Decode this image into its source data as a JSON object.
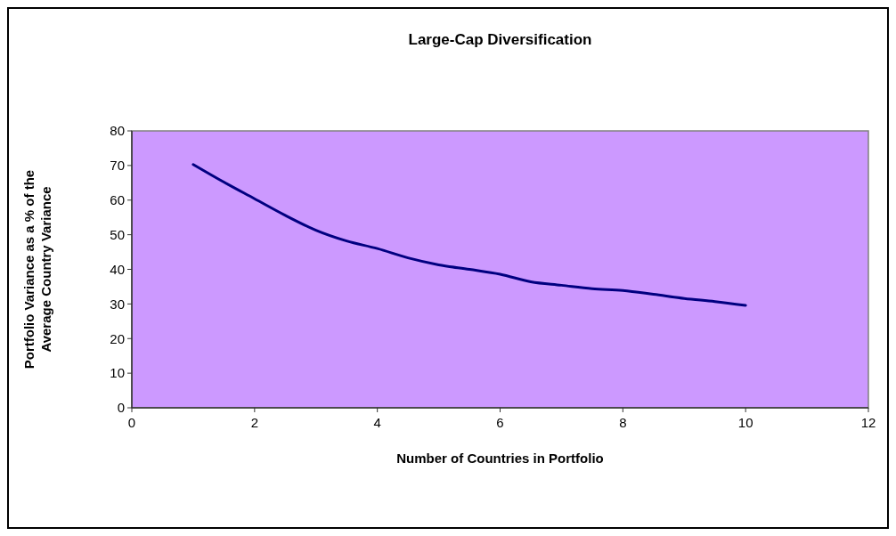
{
  "chart_data": {
    "type": "line",
    "title": "Large-Cap Diversification",
    "xlabel": "Number of Countries in Portfolio",
    "ylabel": "Portfolio Variance as a % of the Average Country Variance",
    "x": [
      1,
      1.5,
      2,
      2.5,
      3,
      3.5,
      4,
      4.5,
      5,
      5.5,
      6,
      6.5,
      7,
      7.5,
      8,
      8.5,
      9,
      9.5,
      10
    ],
    "series": [
      {
        "color": "#000080",
        "values": [
          70.3,
          65.2,
          60.4,
          55.6,
          51.3,
          48.2,
          46.0,
          43.3,
          41.3,
          40.0,
          38.6,
          36.4,
          35.4,
          34.4,
          33.9,
          32.8,
          31.6,
          30.7,
          29.6
        ]
      }
    ],
    "xlim": [
      0,
      12
    ],
    "xticks": [
      0,
      2,
      4,
      6,
      8,
      10,
      12
    ],
    "ylim": [
      0,
      80
    ],
    "yticks": [
      0,
      10,
      20,
      30,
      40,
      50,
      60,
      70,
      80
    ],
    "grid": false,
    "marker": "none",
    "line_style": "solid"
  }
}
